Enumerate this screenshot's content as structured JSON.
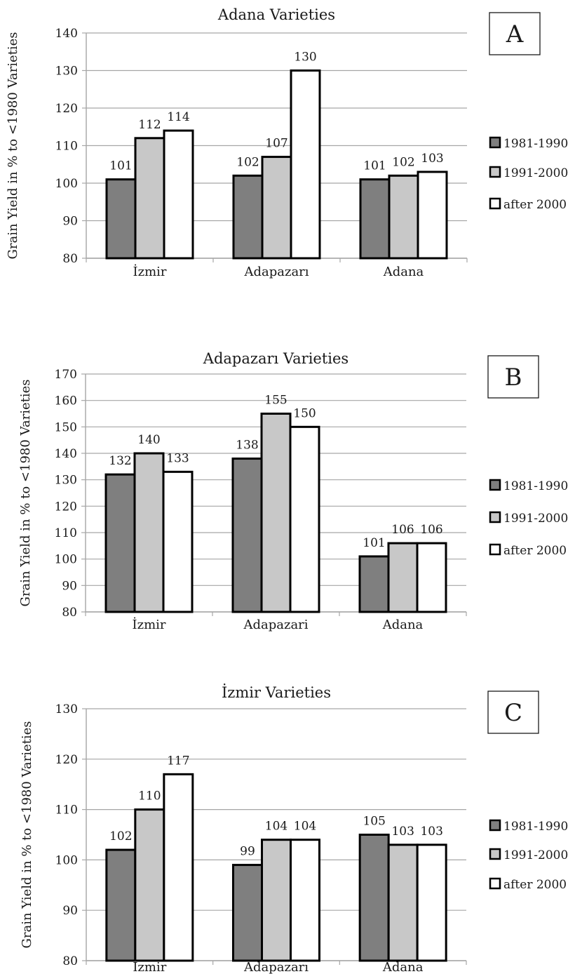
{
  "colors": {
    "s1": "#7f7f7f",
    "s2": "#c8c8c8",
    "s3": "#ffffff",
    "stroke": "#000000",
    "grid": "#a6a6a6"
  },
  "chart_data": [
    {
      "type": "bar",
      "id": "A",
      "panel_letter": "A",
      "title": "Adana Varieties",
      "ylabel": "Grain Yield in % to <1980 Varieties",
      "xlabel": "",
      "ylim": [
        80,
        140
      ],
      "yticks": [
        80,
        90,
        100,
        110,
        120,
        130,
        140
      ],
      "grid": true,
      "legend": "right",
      "categories": [
        "İzmir",
        "Adapazarı",
        "Adana"
      ],
      "series": [
        {
          "name": "1981-1990",
          "values": [
            101,
            102,
            101
          ]
        },
        {
          "name": "1991-2000",
          "values": [
            112,
            107,
            102
          ]
        },
        {
          "name": "after 2000",
          "values": [
            114,
            130,
            103
          ]
        }
      ]
    },
    {
      "type": "bar",
      "id": "B",
      "panel_letter": "B",
      "title": "Adapazarı Varieties",
      "ylabel": "Grain Yield in % to <1980 Varieties",
      "xlabel": "",
      "ylim": [
        80,
        170
      ],
      "yticks": [
        80,
        90,
        100,
        110,
        120,
        130,
        140,
        150,
        160,
        170
      ],
      "grid": true,
      "legend": "right",
      "categories": [
        "İzmir",
        "Adapazari",
        "Adana"
      ],
      "series": [
        {
          "name": "1981-1990",
          "values": [
            132,
            138,
            101
          ]
        },
        {
          "name": "1991-2000",
          "values": [
            140,
            155,
            106
          ]
        },
        {
          "name": "after 2000",
          "values": [
            133,
            150,
            106
          ]
        }
      ]
    },
    {
      "type": "bar",
      "id": "C",
      "panel_letter": "C",
      "title": "İzmir Varieties",
      "ylabel": "Grain Yield  in % to <1980 Varieties",
      "xlabel": "",
      "ylim": [
        80,
        130
      ],
      "yticks": [
        80,
        90,
        100,
        110,
        120,
        130
      ],
      "grid": true,
      "legend": "right",
      "categories": [
        "İzmir",
        "Adapazarı",
        "Adana"
      ],
      "series": [
        {
          "name": "1981-1990",
          "values": [
            102,
            99,
            105
          ]
        },
        {
          "name": "1991-2000",
          "values": [
            110,
            104,
            103
          ]
        },
        {
          "name": "after 2000",
          "values": [
            117,
            104,
            103
          ]
        }
      ]
    }
  ]
}
